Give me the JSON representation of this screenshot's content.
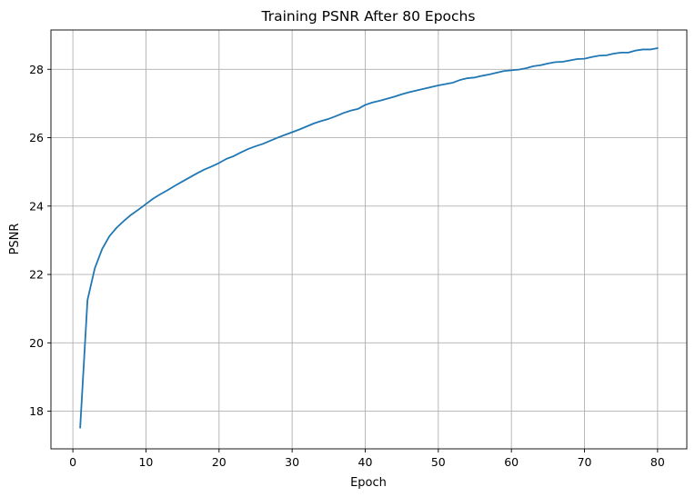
{
  "chart_data": {
    "type": "line",
    "title": "Training PSNR After 80 Epochs",
    "xlabel": "Epoch",
    "ylabel": "PSNR",
    "xlim": [
      -3.0,
      84.0
    ],
    "ylim": [
      16.9,
      29.15
    ],
    "xticks": [
      0,
      10,
      20,
      30,
      40,
      50,
      60,
      70,
      80
    ],
    "yticks": [
      18,
      20,
      22,
      24,
      26,
      28
    ],
    "grid": true,
    "legend": "none",
    "colors": {
      "line": "#1f77b4",
      "grid": "#b0b0b0",
      "axes": "#000000"
    },
    "series": [
      {
        "x": [
          1,
          2,
          3,
          4,
          5,
          6,
          7,
          8,
          9,
          10,
          11,
          12,
          13,
          14,
          15,
          16,
          17,
          18,
          19,
          20,
          21,
          22,
          23,
          24,
          25,
          26,
          27,
          28,
          29,
          30,
          31,
          32,
          33,
          34,
          35,
          36,
          37,
          38,
          39,
          40,
          41,
          42,
          43,
          44,
          45,
          46,
          47,
          48,
          49,
          50,
          51,
          52,
          53,
          54,
          55,
          56,
          57,
          58,
          59,
          60,
          61,
          62,
          63,
          64,
          65,
          66,
          67,
          68,
          69,
          70,
          71,
          72,
          73,
          74,
          75,
          76,
          77,
          78,
          79,
          80
        ],
        "values": [
          17.52,
          21.25,
          22.18,
          22.74,
          23.12,
          23.37,
          23.57,
          23.75,
          23.9,
          24.06,
          24.22,
          24.35,
          24.47,
          24.6,
          24.72,
          24.84,
          24.96,
          25.07,
          25.16,
          25.26,
          25.38,
          25.46,
          25.57,
          25.67,
          25.75,
          25.82,
          25.91,
          26.0,
          26.08,
          26.16,
          26.24,
          26.33,
          26.42,
          26.49,
          26.55,
          26.63,
          26.72,
          26.79,
          26.84,
          26.96,
          27.03,
          27.08,
          27.14,
          27.2,
          27.27,
          27.33,
          27.38,
          27.43,
          27.48,
          27.53,
          27.57,
          27.61,
          27.69,
          27.74,
          27.76,
          27.81,
          27.85,
          27.9,
          27.95,
          27.97,
          27.99,
          28.03,
          28.09,
          28.12,
          28.17,
          28.21,
          28.22,
          28.26,
          28.3,
          28.31,
          28.36,
          28.4,
          28.41,
          28.46,
          28.49,
          28.49,
          28.55,
          28.58,
          28.58,
          28.62
        ]
      }
    ]
  }
}
